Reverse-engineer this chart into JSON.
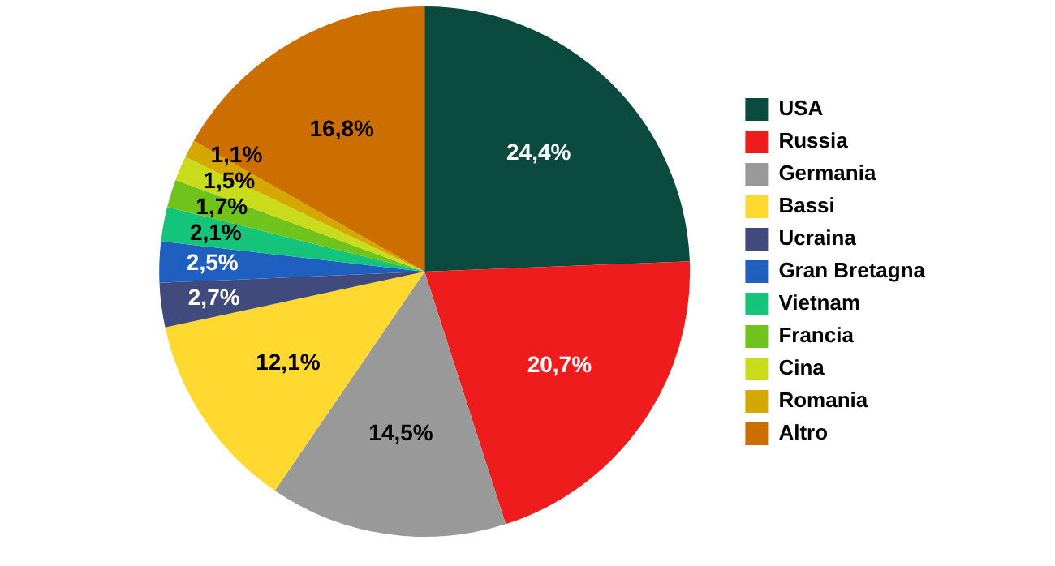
{
  "chart_data": {
    "type": "pie",
    "categories": [
      "USA",
      "Russia",
      "Germania",
      "Bassi",
      "Ucraina",
      "Gran Bretagna",
      "Vietnam",
      "Francia",
      "Cina",
      "Romania",
      "Altro"
    ],
    "values": [
      24.4,
      20.7,
      14.5,
      12.1,
      2.7,
      2.5,
      2.1,
      1.7,
      1.5,
      1.1,
      16.8
    ],
    "value_labels": [
      "24,4%",
      "20,7%",
      "14,5%",
      "12,1%",
      "2,7%",
      "2,5%",
      "2,1%",
      "1,7%",
      "1,5%",
      "1,1%",
      "16,8%"
    ],
    "colors": [
      "#0b4a3e",
      "#ee1c1c",
      "#999999",
      "#ffd92f",
      "#414a7c",
      "#1f5fbf",
      "#14c47a",
      "#6fc31a",
      "#c8dc1c",
      "#d4a800",
      "#cc6e00"
    ],
    "legend": "right"
  }
}
